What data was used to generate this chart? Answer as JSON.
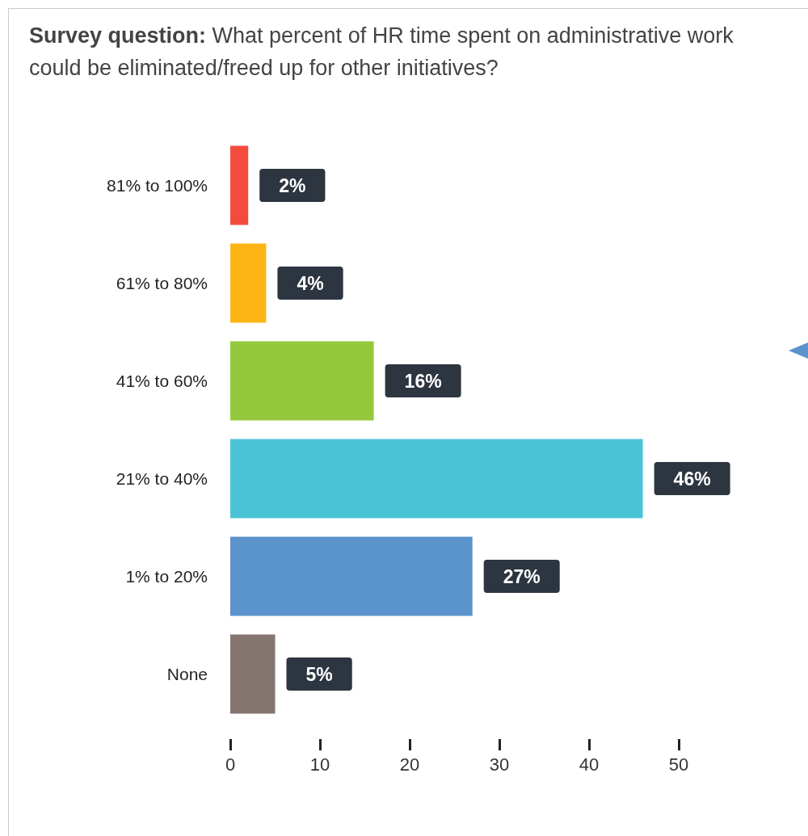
{
  "chart_data": {
    "type": "bar",
    "orientation": "horizontal",
    "title": "Survey question: What percent of HR time spent on administrative work could be eliminated/freed up for other initiatives?",
    "categories": [
      "81% to 100%",
      "61% to 80%",
      "41% to 60%",
      "21% to 40%",
      "1% to 20%",
      "None"
    ],
    "values": [
      2,
      4,
      16,
      46,
      27,
      5
    ],
    "colors": [
      "#f44b3e",
      "#fdb515",
      "#95c93d",
      "#4bc4d8",
      "#5b93cc",
      "#847571"
    ],
    "value_labels": [
      "2%",
      "4%",
      "16%",
      "46%",
      "27%",
      "5%"
    ],
    "xlim": [
      0,
      50
    ],
    "xticks": [
      0,
      10,
      20,
      30,
      40,
      50
    ],
    "grid": false
  }
}
